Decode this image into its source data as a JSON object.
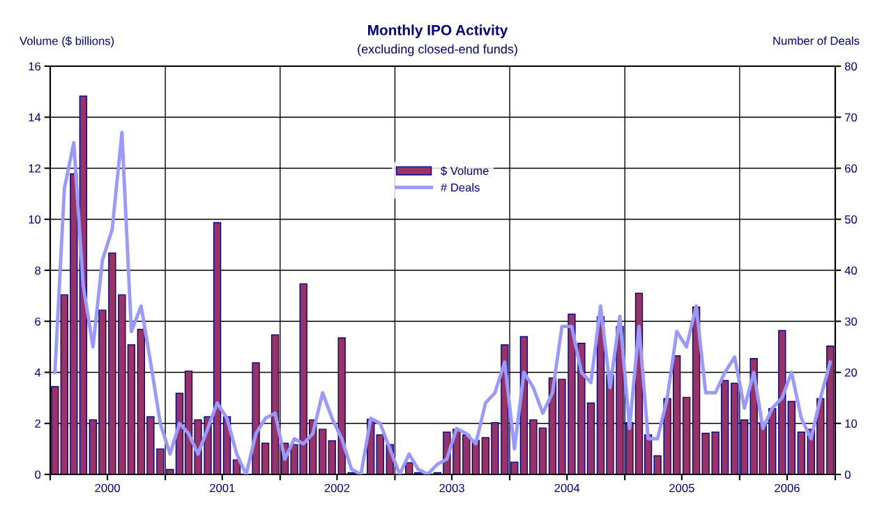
{
  "chart_data": {
    "type": "bar",
    "title": "Monthly IPO Activity",
    "subtitle": "(excluding closed-end funds)",
    "ylabel": "Volume ($ billions)",
    "y2label": "Number of Deals",
    "x": [
      "2000-01-16",
      "2000-02-15",
      "2000-03-16",
      "2000-04-15",
      "2000-05-16",
      "2000-06-15",
      "2000-07-16",
      "2000-08-16",
      "2000-09-15",
      "2000-10-16",
      "2000-11-15",
      "2000-12-16",
      "2001-01-16",
      "2001-02-15",
      "2001-03-16",
      "2001-04-15",
      "2001-05-16",
      "2001-06-15",
      "2001-07-16",
      "2001-08-16",
      "2001-09-15",
      "2001-10-16",
      "2001-11-15",
      "2001-12-16",
      "2002-01-16",
      "2002-02-15",
      "2002-03-16",
      "2002-04-15",
      "2002-05-16",
      "2002-06-15",
      "2002-07-16",
      "2002-08-16",
      "2002-09-15",
      "2002-10-16",
      "2002-11-15",
      "2002-12-16",
      "2003-01-16",
      "2003-02-15",
      "2003-03-16",
      "2003-04-15",
      "2003-05-16",
      "2003-06-15",
      "2003-07-16",
      "2003-08-16",
      "2003-09-15",
      "2003-10-16",
      "2003-11-15",
      "2003-12-16",
      "2004-01-16",
      "2004-02-15",
      "2004-03-16",
      "2004-04-15",
      "2004-05-16",
      "2004-06-15",
      "2004-07-16",
      "2004-08-16",
      "2004-09-15",
      "2004-10-16",
      "2004-11-15",
      "2004-12-16",
      "2005-01-16",
      "2005-02-15",
      "2005-03-16",
      "2005-04-15",
      "2005-05-16",
      "2005-06-15",
      "2005-07-16",
      "2005-08-16",
      "2005-09-15",
      "2005-10-16",
      "2005-11-15",
      "2005-12-16",
      "2006-01-16",
      "2006-02-15",
      "2006-03-16",
      "2006-04-15",
      "2006-05-16",
      "2006-06-15",
      "2006-07-16",
      "2006-08-16",
      "2006-09-15",
      "2006-10-16"
    ],
    "series": [
      {
        "name": "$ Volume",
        "color": "#993366",
        "values": [
          3.44,
          7.04,
          11.78,
          14.83,
          2.14,
          6.44,
          8.68,
          7.04,
          5.08,
          5.69,
          2.26,
          1.0,
          0.19,
          3.18,
          4.05,
          2.14,
          2.26,
          9.87,
          2.26,
          0.57,
          0,
          4.38,
          1.22,
          5.47,
          1.22,
          1.17,
          7.47,
          2.14,
          1.77,
          1.32,
          5.35,
          0.07,
          0,
          2.16,
          1.55,
          1.17,
          0,
          0.46,
          0.07,
          0,
          0.07,
          1.66,
          1.77,
          1.55,
          1.33,
          1.44,
          2.03,
          5.08,
          0.48,
          5.4,
          2.14,
          1.82,
          3.78,
          3.73,
          6.28,
          5.14,
          2.8,
          6.18,
          3.9,
          5.8,
          2.03,
          7.1,
          1.55,
          0.73,
          2.97,
          4.65,
          3.02,
          6.56,
          1.61,
          1.66,
          3.68,
          3.57,
          2.14,
          4.54,
          2.03,
          2.58,
          5.64,
          2.86,
          1.66,
          1.77,
          2.97,
          5.03
        ]
      },
      {
        "name": "# Deals",
        "type": "line",
        "axis": "y2",
        "color": "#9999ff",
        "values": [
          20,
          56,
          65,
          37,
          25,
          42,
          48,
          67,
          28,
          33,
          22,
          10,
          4,
          10,
          8,
          4,
          9,
          14,
          11,
          4,
          0,
          8,
          11,
          12,
          3,
          7,
          6,
          8,
          16,
          11,
          7,
          1,
          0,
          11,
          10,
          5,
          0,
          4,
          1,
          0,
          2,
          3,
          9,
          8,
          6,
          14,
          16,
          22,
          5,
          20,
          17,
          12,
          16,
          29,
          29,
          20,
          18,
          33,
          17,
          31,
          9,
          29,
          7,
          7,
          15,
          28,
          25,
          33,
          16,
          16,
          20,
          23,
          13,
          20,
          9,
          13,
          15,
          20,
          11,
          7,
          15,
          22
        ]
      }
    ],
    "xlim": [
      "2000-01-01",
      "2006-11-01"
    ],
    "xticks": [
      {
        "value": "2000-01-01",
        "label": null
      },
      {
        "value": "2000-07-01",
        "label": "2000"
      },
      {
        "value": "2001-01-01",
        "label": null
      },
      {
        "value": "2001-07-01",
        "label": "2001"
      },
      {
        "value": "2002-01-01",
        "label": null
      },
      {
        "value": "2002-07-01",
        "label": "2002"
      },
      {
        "value": "2003-01-01",
        "label": null
      },
      {
        "value": "2003-07-01",
        "label": "2003"
      },
      {
        "value": "2004-01-01",
        "label": null
      },
      {
        "value": "2004-07-01",
        "label": "2004"
      },
      {
        "value": "2005-01-01",
        "label": null
      },
      {
        "value": "2005-07-01",
        "label": "2005"
      },
      {
        "value": "2006-01-01",
        "label": null
      },
      {
        "value": "2006-06-01",
        "label": "2006"
      },
      {
        "value": "2006-11-01",
        "label": null
      }
    ],
    "ylim": [
      0,
      16
    ],
    "yticks": [
      0,
      2,
      4,
      6,
      8,
      10,
      12,
      14,
      16
    ],
    "y2lim": [
      0,
      80
    ],
    "y2ticks": [
      0,
      10,
      20,
      30,
      40,
      50,
      60,
      70,
      80
    ],
    "grid": true,
    "legend": "top",
    "marker": "none",
    "line_style": "solid"
  }
}
